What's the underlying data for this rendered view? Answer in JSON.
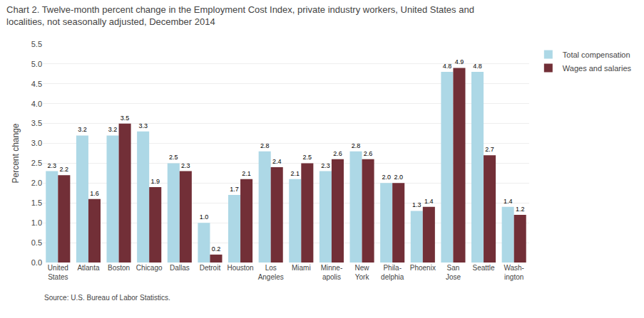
{
  "chart_data": {
    "type": "bar",
    "title": "Chart 2. Twelve-month percent change in the Employment Cost Index, private industry workers, United States and\nlocalities, not seasonally adjusted, December 2014",
    "ylabel": "Percent change",
    "source": "Source: U.S. Bureau of Labor Statistics.",
    "categories": [
      "United\nStates",
      "Atlanta",
      "Boston",
      "Chicago",
      "Dallas",
      "Detroit",
      "Houston",
      "Los\nAngeles",
      "Miami",
      "Minne-\napolis",
      "New\nYork",
      "Phila-\ndelphia",
      "Phoenix",
      "San\nJose",
      "Seattle",
      "Wash-\nington"
    ],
    "series": [
      {
        "name": "Total compensation",
        "color": "#add8e6",
        "values": [
          2.3,
          3.2,
          3.2,
          3.3,
          2.5,
          1.0,
          1.7,
          2.8,
          2.1,
          2.3,
          2.8,
          2.0,
          1.3,
          4.8,
          4.8,
          1.4
        ],
        "value_labels": [
          "2.3",
          "3.2",
          "3.2",
          "3.3",
          "2.5",
          "1.0",
          "1.7",
          "2.8",
          "2.1",
          "2.3",
          "2.8",
          "2.0",
          "1.3",
          "4.8",
          "4.8",
          "1.4"
        ]
      },
      {
        "name": "Wages and salaries",
        "color": "#722f37",
        "values": [
          2.2,
          1.6,
          3.5,
          1.9,
          2.3,
          0.2,
          2.1,
          2.4,
          2.5,
          2.6,
          2.6,
          2.0,
          1.4,
          4.9,
          2.7,
          1.2
        ],
        "value_labels": [
          "2.2",
          "1.6",
          "3.5",
          "1.9",
          "2.3",
          "0.2",
          "2.1",
          "2.4",
          "2.5",
          "2.6",
          "2.6",
          "2.0",
          "1.4",
          "4.9",
          "2.7",
          "1.2"
        ]
      }
    ],
    "ylim": [
      0,
      5.5
    ],
    "yticks": [
      {
        "value": 0,
        "label": "0.0"
      },
      {
        "value": 0.5,
        "label": "0.5"
      },
      {
        "value": 1,
        "label": "1.0"
      },
      {
        "value": 1.5,
        "label": "1.5"
      },
      {
        "value": 2,
        "label": "2.0"
      },
      {
        "value": 2.5,
        "label": "2.5"
      },
      {
        "value": 3,
        "label": "3.0"
      },
      {
        "value": 3.5,
        "label": "3.5"
      },
      {
        "value": 4,
        "label": "4.0"
      },
      {
        "value": 4.5,
        "label": "4.5"
      },
      {
        "value": 5,
        "label": "5.0"
      },
      {
        "value": 5.5,
        "label": "5.5"
      }
    ],
    "grid": true,
    "legend": "right",
    "data_labels": true
  }
}
